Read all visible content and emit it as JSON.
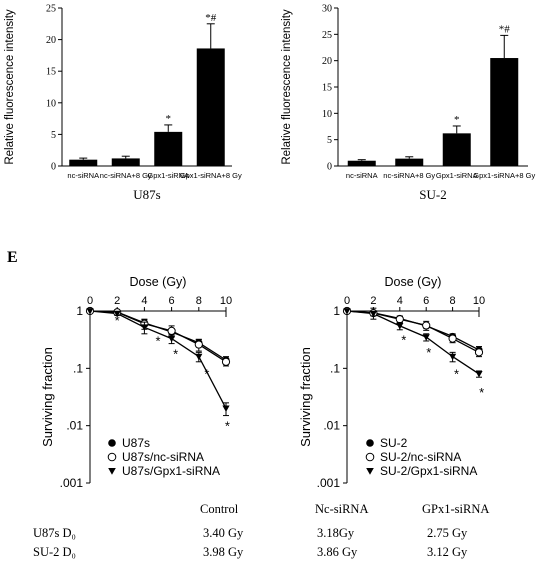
{
  "panel_label": "E",
  "chart_data": [
    {
      "type": "bar",
      "xlabel": "U87s",
      "ylabel": "Relative fluorescence intensity",
      "categories": [
        "nc-siRNA",
        "nc-siRNA+8 Gy",
        "Gpx1-siRNA",
        "Gpx1-siRNA+8 Gy"
      ],
      "values": [
        1.0,
        1.2,
        5.4,
        18.6
      ],
      "errors": [
        0.25,
        0.35,
        1.1,
        3.9
      ],
      "annotations": [
        "",
        "",
        "*",
        "*#"
      ],
      "ylim": [
        0,
        25
      ],
      "yticks": [
        0,
        5,
        10,
        15,
        20,
        25
      ]
    },
    {
      "type": "bar",
      "xlabel": "SU-2",
      "ylabel": "Relative fluorescence intensity",
      "categories": [
        "nc-siRNA",
        "nc-siRNA+8 Gy",
        "Gpx1-siRNA",
        "Gpx1-siRNA+8 Gy"
      ],
      "values": [
        1.0,
        1.4,
        6.2,
        20.5
      ],
      "errors": [
        0.2,
        0.35,
        1.4,
        4.3
      ],
      "annotations": [
        "",
        "",
        "*",
        "*#"
      ],
      "ylim": [
        0,
        30
      ],
      "yticks": [
        0,
        5,
        10,
        15,
        20,
        25,
        30
      ]
    },
    {
      "type": "scatter",
      "title": "Dose (Gy)",
      "ylabel": "Surviving fraction",
      "xlim": [
        0,
        10
      ],
      "xticks": [
        0,
        2,
        4,
        6,
        8,
        10
      ],
      "ylim": [
        0.001,
        1
      ],
      "yscale": "log",
      "yticks": [
        1,
        0.1,
        0.01,
        0.001
      ],
      "ytick_labels": [
        "1",
        ".1",
        ".01",
        ".001"
      ],
      "legend_position": "bottom-left",
      "series": [
        {
          "name": "U87s",
          "marker": "filled-circle",
          "x": [
            0,
            2,
            4,
            6,
            8,
            10
          ],
          "y": [
            1.0,
            0.96,
            0.62,
            0.43,
            0.28,
            0.14
          ],
          "yerr": [
            0,
            0.05,
            0.08,
            0.06,
            0.04,
            0.02
          ]
        },
        {
          "name": "U87s/nc-siRNA",
          "marker": "open-circle",
          "x": [
            0,
            2,
            4,
            6,
            8,
            10
          ],
          "y": [
            1.0,
            0.95,
            0.6,
            0.45,
            0.26,
            0.13
          ],
          "yerr": [
            0,
            0.05,
            0.12,
            0.1,
            0.06,
            0.02
          ]
        },
        {
          "name": "U87s/Gpx1-siRNA",
          "marker": "filled-triangle-down",
          "x": [
            0,
            2,
            4,
            6,
            8,
            10
          ],
          "y": [
            1.0,
            0.9,
            0.52,
            0.33,
            0.16,
            0.02
          ],
          "yerr": [
            0,
            0.06,
            0.12,
            0.06,
            0.03,
            0.005
          ]
        }
      ],
      "annotations": [
        {
          "text": "*",
          "x": 2,
          "y": 0.72
        },
        {
          "text": "*",
          "x": 5,
          "y": 0.32
        },
        {
          "text": "*",
          "x": 6.3,
          "y": 0.19
        },
        {
          "text": "*",
          "x": 8.6,
          "y": 0.085
        },
        {
          "text": "*",
          "x": 10.1,
          "y": 0.0105
        }
      ]
    },
    {
      "type": "scatter",
      "title": "Dose (Gy)",
      "ylabel": "Surviving fraction",
      "xlim": [
        0,
        10
      ],
      "xticks": [
        0,
        2,
        4,
        6,
        8,
        10
      ],
      "ylim": [
        0.001,
        1
      ],
      "yscale": "log",
      "yticks": [
        1,
        0.1,
        0.01,
        0.001
      ],
      "ytick_labels": [
        "1",
        ".1",
        ".01",
        ".001"
      ],
      "legend_position": "bottom-left",
      "series": [
        {
          "name": "SU-2",
          "marker": "filled-circle",
          "x": [
            0,
            2,
            4,
            6,
            8,
            10
          ],
          "y": [
            1.0,
            0.93,
            0.74,
            0.55,
            0.36,
            0.21
          ],
          "yerr": [
            0,
            0.05,
            0.06,
            0.05,
            0.04,
            0.03
          ]
        },
        {
          "name": "SU-2/nc-siRNA",
          "marker": "open-circle",
          "x": [
            0,
            2,
            4,
            6,
            8,
            10
          ],
          "y": [
            1.0,
            0.92,
            0.72,
            0.56,
            0.33,
            0.19
          ],
          "yerr": [
            0,
            0.2,
            0.1,
            0.1,
            0.05,
            0.03
          ]
        },
        {
          "name": "SU-2/Gpx1-siRNA",
          "marker": "filled-triangle-down",
          "x": [
            0,
            2,
            4,
            6,
            8,
            10
          ],
          "y": [
            1.0,
            0.9,
            0.55,
            0.35,
            0.16,
            0.08
          ],
          "yerr": [
            0,
            0.08,
            0.08,
            0.05,
            0.03,
            0.01
          ]
        }
      ],
      "annotations": [
        {
          "text": "*",
          "x": 4.3,
          "y": 0.33
        },
        {
          "text": "*",
          "x": 6.2,
          "y": 0.2
        },
        {
          "text": "*",
          "x": 8.3,
          "y": 0.085
        },
        {
          "text": "*",
          "x": 10.2,
          "y": 0.04
        }
      ]
    }
  ],
  "d0_table": {
    "columns": [
      "Control",
      "Nc-siRNA",
      "GPx1-siRNA"
    ],
    "rows": [
      {
        "label": "U87s D₀",
        "values": [
          "3.40 Gy",
          "3.18Gy",
          "2.75 Gy"
        ]
      },
      {
        "label": "SU-2 D₀",
        "values": [
          "3.98 Gy",
          "3.86 Gy",
          "3.12 Gy"
        ]
      }
    ]
  }
}
